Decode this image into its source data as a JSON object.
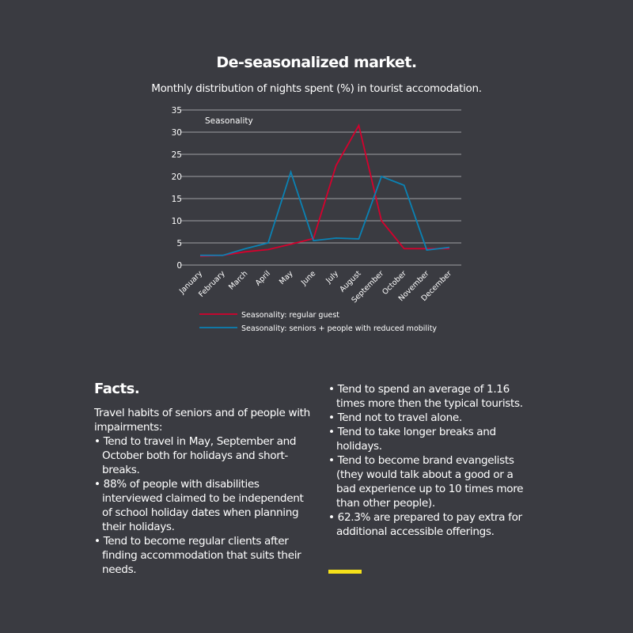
{
  "title": "De-seasonalized market.",
  "subtitle": "Monthly distribution of nights spent (%) in tourist accomodation.",
  "chart_data": {
    "type": "line",
    "title": "Seasonality",
    "categories": [
      "January",
      "February",
      "March",
      "April",
      "May",
      "June",
      "July",
      "August",
      "September",
      "October",
      "November",
      "December"
    ],
    "ylim": [
      0,
      35
    ],
    "yticks": [
      0,
      5,
      10,
      15,
      20,
      25,
      30,
      35
    ],
    "grid": true,
    "legend": "bottom",
    "series": [
      {
        "name": "Seasonality: regular guest",
        "color": "#d6002d",
        "values": [
          2.0,
          2.2,
          3.0,
          3.5,
          4.7,
          6.0,
          22.5,
          31.5,
          10.0,
          3.7,
          3.7,
          3.7
        ]
      },
      {
        "name": "Seasonality: seniors + people with reduced mobility",
        "color": "#0a82b4",
        "values": [
          2.2,
          2.2,
          3.7,
          5.0,
          21.0,
          5.5,
          6.1,
          5.9,
          20.0,
          18.0,
          3.4,
          4.0
        ]
      }
    ]
  },
  "facts": {
    "heading": "Facts.",
    "intro": "Travel habits of seniors and of people with impairments:",
    "left_items": [
      "Tend to travel in May, September and October both for holidays and short-breaks.",
      "88% of people with disabilities interviewed claimed to be independent of school holiday dates when planning their holidays.",
      "Tend to become regular clients after finding accommodation that suits their needs."
    ],
    "right_items": [
      "Tend to spend an average of 1.16 times more then the typical tourists.",
      "Tend not to travel alone.",
      "Tend to take longer breaks and holidays.",
      "Tend to become brand evangelists (they would talk about a good or a bad experience up to 10 times more than other people).",
      "62.3% are prepared to pay extra for additional accessible offerings."
    ]
  },
  "accent_color": "#f5e11a"
}
